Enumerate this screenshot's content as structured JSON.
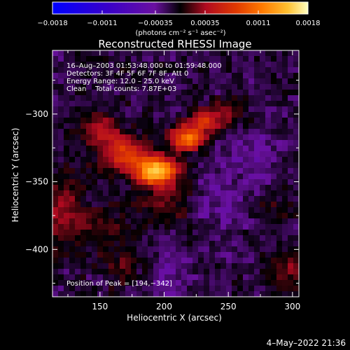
{
  "chart_data": {
    "type": "heatmap",
    "title": "Reconstructed RHESSI Image",
    "xlabel": "Heliocentric X (arcsec)",
    "ylabel": "Heliocentric Y (arcsec)",
    "xlim": [
      113,
      305
    ],
    "ylim": [
      -435,
      -253
    ],
    "x_ticks": [
      150,
      200,
      250,
      300
    ],
    "y_ticks": [
      -300,
      -350,
      -400
    ],
    "x_tick_labels": [
      "150",
      "200",
      "250",
      "300"
    ],
    "y_tick_labels": [
      "−300",
      "−350",
      "−400"
    ],
    "colorbar": {
      "range": [
        -0.0018,
        0.0018
      ],
      "tick_values": [
        -0.0018,
        -0.0011,
        -0.00035,
        0.00035,
        0.0011,
        0.0018
      ],
      "tick_labels": [
        "−0.0018",
        "−0.0011",
        "−0.00035",
        "0.00035",
        "0.0011",
        "0.0018"
      ],
      "unit_label": "(photons cm⁻² s⁻¹ asec⁻²)"
    },
    "annotations": [
      "16–Aug–2003 01:53:48.000 to 01:59:48.000",
      "Detectors: 3F 4F 5F 6F 7F 8F, Att 0",
      "Energy Range: 12.0 – 25.0 keV",
      "Clean    Total counts: 7.87E+03"
    ],
    "peak_label": "Position of Peak = [194,−342]",
    "peak": [
      194,
      -342
    ],
    "sources": [
      {
        "x": 194,
        "y": -342,
        "sx": 11,
        "sy": 7,
        "amp": 0.00175
      },
      {
        "x": 218,
        "y": -318,
        "sx": 9,
        "sy": 6,
        "amp": 0.00125
      },
      {
        "x": 170,
        "y": -330,
        "sx": 12,
        "sy": 9,
        "amp": 0.0009
      },
      {
        "x": 230,
        "y": -305,
        "sx": 8,
        "sy": 6,
        "amp": 0.0007
      },
      {
        "x": 150,
        "y": -310,
        "sx": 10,
        "sy": 10,
        "amp": 0.0005
      },
      {
        "x": 200,
        "y": -365,
        "sx": 14,
        "sy": 10,
        "amp": 0.0004
      },
      {
        "x": 120,
        "y": -370,
        "sx": 12,
        "sy": 20,
        "amp": 0.00045
      },
      {
        "x": 150,
        "y": -385,
        "sx": 12,
        "sy": 10,
        "amp": 0.0003
      },
      {
        "x": 295,
        "y": -415,
        "sx": 10,
        "sy": 10,
        "amp": 0.00035
      },
      {
        "x": 285,
        "y": -370,
        "sx": 10,
        "sy": 8,
        "amp": 0.0002
      },
      {
        "x": 250,
        "y": -300,
        "sx": 12,
        "sy": 8,
        "amp": 0.00028
      },
      {
        "x": 170,
        "y": -410,
        "sx": 14,
        "sy": 12,
        "amp": 0.00025
      },
      {
        "x": 245,
        "y": -365,
        "sx": 15,
        "sy": 15,
        "amp": -0.0002
      },
      {
        "x": 270,
        "y": -330,
        "sx": 15,
        "sy": 15,
        "amp": -0.00022
      },
      {
        "x": 200,
        "y": -420,
        "sx": 15,
        "sy": 12,
        "amp": -0.0002
      }
    ]
  },
  "footer": {
    "timestamp": "4–May–2022 21:36"
  }
}
